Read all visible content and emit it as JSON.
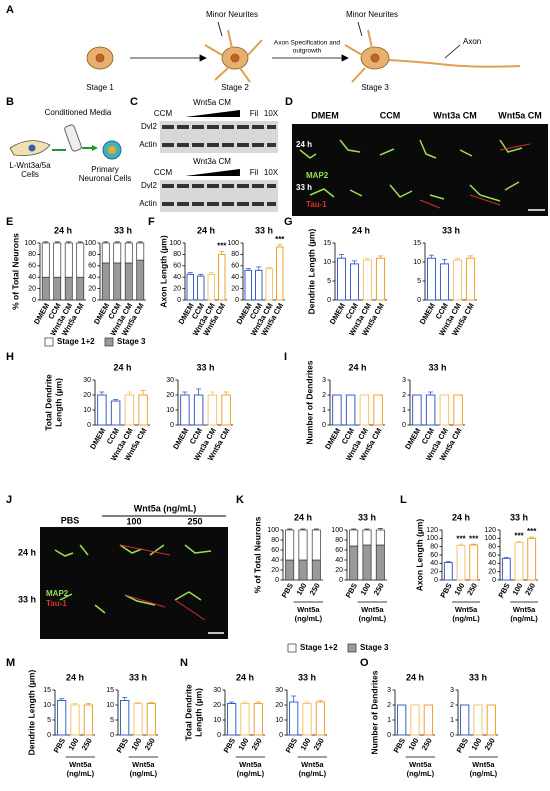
{
  "figure": {
    "A": {
      "letter": "A",
      "stages": [
        "Stage 1",
        "Stage 2",
        "Stage 3"
      ],
      "minor": [
        "Minor Neurites",
        "Minor Neurites"
      ],
      "step": [
        "Axon Specification and",
        "outgrowth"
      ],
      "axon": "Axon"
    },
    "B": {
      "letter": "B",
      "media": "Conditioned Media",
      "source": [
        "L-Wnt3a/5a",
        "Cells"
      ],
      "target": [
        "Primary",
        "Neuronal Cells"
      ]
    },
    "C": {
      "letter": "C",
      "blots": [
        {
          "ccm": "CCM",
          "treat": "Wnt5a CM",
          "fil": "Fil",
          "x10": "10X",
          "rows": [
            "Dvl2",
            "Actin"
          ]
        },
        {
          "ccm": "CCM",
          "treat": "Wnt3a CM",
          "fil": "Fil",
          "x10": "10X",
          "rows": [
            "Dvl2",
            "Actin"
          ]
        }
      ]
    },
    "D": {
      "letter": "D",
      "columns": [
        "DMEM",
        "CCM",
        "Wnt3a CM",
        "Wnt5a CM"
      ],
      "rows": [
        "24 h",
        "33 h"
      ],
      "stain": [
        "MAP2",
        "Tau-1"
      ]
    },
    "J": {
      "letter": "J",
      "control": "PBS",
      "treat": "Wnt5a (ng/mL)",
      "doses": [
        "100",
        "250"
      ],
      "rows": [
        "24 h",
        "33 h"
      ],
      "stain": [
        "MAP2",
        "Tau-1"
      ]
    }
  },
  "charts": {
    "E": {
      "letter": "E",
      "type": "stacked",
      "ylabel": [
        "% of Total Neurons"
      ],
      "ylim": [
        0,
        100
      ],
      "yticks": [
        0,
        20,
        40,
        60,
        80,
        100
      ],
      "legend": [
        {
          "name": "Stage 1+2",
          "color": "#ffffff"
        },
        {
          "name": "Stage 3",
          "color": "#999999"
        }
      ],
      "groups": [
        {
          "title": "24 h",
          "categories": [
            "DMEM",
            "CCM",
            "Wnt3a CM",
            "Wnt5a CM"
          ],
          "series": [
            {
              "values": [
                60,
                60,
                60,
                60
              ],
              "errors": [
                2,
                2,
                2,
                2
              ]
            },
            {
              "values": [
                40,
                40,
                40,
                40
              ],
              "errors": [
                2,
                2,
                2,
                2
              ]
            }
          ]
        },
        {
          "title": "33 h",
          "categories": [
            "DMEM",
            "CCM",
            "Wnt3a CM",
            "Wnt5a CM"
          ],
          "series": [
            {
              "values": [
                35,
                35,
                35,
                30
              ],
              "errors": [
                2,
                2,
                2,
                2
              ]
            },
            {
              "values": [
                65,
                65,
                65,
                70
              ],
              "errors": [
                2,
                2,
                2,
                2
              ]
            }
          ]
        }
      ]
    },
    "F": {
      "letter": "F",
      "type": "bar",
      "ylabel": [
        "Axon Length (µm)"
      ],
      "ylim": [
        0,
        100
      ],
      "yticks": [
        0,
        20,
        40,
        60,
        80,
        100
      ],
      "colors": [
        "#3a5fcd",
        "#3a5fcd",
        "#f6c36b",
        "#f0a030"
      ],
      "groups": [
        {
          "title": "24 h",
          "categories": [
            "DMEM",
            "CCM",
            "Wnt3a CM",
            "Wnt5a CM"
          ],
          "values": [
            45,
            42,
            45,
            80
          ],
          "errors": [
            3,
            3,
            3,
            5
          ],
          "stars": [
            null,
            null,
            null,
            "***"
          ]
        },
        {
          "title": "33 h",
          "categories": [
            "DMEM",
            "CCM",
            "Wnt3a CM",
            "Wnt5a CM"
          ],
          "values": [
            52,
            52,
            55,
            93
          ],
          "errors": [
            3,
            6,
            2,
            4
          ],
          "stars": [
            null,
            null,
            null,
            "***"
          ]
        }
      ]
    },
    "G": {
      "letter": "G",
      "type": "bar",
      "ylabel": [
        "Dendrite Length (µm)"
      ],
      "ylim": [
        0,
        15
      ],
      "yticks": [
        0,
        5,
        10,
        15
      ],
      "colors": [
        "#3a5fcd",
        "#3a5fcd",
        "#f6c36b",
        "#f0a030"
      ],
      "groups": [
        {
          "title": "24 h",
          "categories": [
            "DMEM",
            "CCM",
            "Wnt3a CM",
            "Wnt5a CM"
          ],
          "values": [
            11,
            9.5,
            10.5,
            11
          ],
          "errors": [
            1,
            0.8,
            0.5,
            0.6
          ]
        },
        {
          "title": "33 h",
          "categories": [
            "DMEM",
            "CCM",
            "Wnt3a CM",
            "Wnt5a CM"
          ],
          "values": [
            11,
            9.5,
            10.5,
            11
          ],
          "errors": [
            0.8,
            1.2,
            0.5,
            0.6
          ]
        }
      ]
    },
    "H": {
      "letter": "H",
      "type": "bar",
      "ylabel": [
        "Total Dendrite",
        "Length (µm)"
      ],
      "ylim": [
        0,
        30
      ],
      "yticks": [
        0,
        10,
        20,
        30
      ],
      "colors": [
        "#3a5fcd",
        "#3a5fcd",
        "#f6c36b",
        "#f0a030"
      ],
      "groups": [
        {
          "title": "24 h",
          "categories": [
            "DMEM",
            "CCM",
            "Wnt3a CM",
            "Wnt5a CM"
          ],
          "values": [
            20,
            16,
            20,
            20
          ],
          "errors": [
            2,
            1,
            2,
            3
          ]
        },
        {
          "title": "33 h",
          "categories": [
            "DMEM",
            "CCM",
            "Wnt3a CM",
            "Wnt5a CM"
          ],
          "values": [
            20,
            20,
            20,
            20
          ],
          "errors": [
            2,
            4,
            2,
            2
          ]
        }
      ]
    },
    "I": {
      "letter": "I",
      "type": "bar",
      "ylabel": [
        "Number of Dendrites"
      ],
      "ylim": [
        0,
        3
      ],
      "yticks": [
        0,
        1,
        2,
        3
      ],
      "colors": [
        "#3a5fcd",
        "#3a5fcd",
        "#f6c36b",
        "#f0a030"
      ],
      "groups": [
        {
          "title": "24 h",
          "categories": [
            "DMEM",
            "CCM",
            "Wnt3a CM",
            "Wnt5a CM"
          ],
          "values": [
            2,
            2,
            2,
            2
          ],
          "errors": [
            0,
            0,
            0,
            0
          ]
        },
        {
          "title": "33 h",
          "categories": [
            "DMEM",
            "CCM",
            "Wnt3a CM",
            "Wnt5a CM"
          ],
          "values": [
            2,
            2,
            2,
            2
          ],
          "errors": [
            0,
            0.2,
            0,
            0
          ]
        }
      ]
    },
    "K": {
      "letter": "K",
      "type": "stacked",
      "ylabel": [
        "% of Total Neurons"
      ],
      "ylim": [
        0,
        100
      ],
      "yticks": [
        0,
        20,
        40,
        60,
        80,
        100
      ],
      "legend": [
        {
          "name": "Stage 1+2",
          "color": "#ffffff"
        },
        {
          "name": "Stage 3",
          "color": "#999999"
        }
      ],
      "groups": [
        {
          "title": "24 h",
          "categories": [
            "PBS",
            "100",
            "250"
          ],
          "bracket": [
            "Wnt5a",
            "(ng/mL)"
          ],
          "series": [
            {
              "values": [
                60,
                60,
                60
              ],
              "errors": [
                2,
                2,
                2
              ]
            },
            {
              "values": [
                40,
                40,
                40
              ],
              "errors": [
                2,
                2,
                2
              ]
            }
          ]
        },
        {
          "title": "33 h",
          "categories": [
            "PBS",
            "100",
            "250"
          ],
          "bracket": [
            "Wnt5a",
            "(ng/mL)"
          ],
          "series": [
            {
              "values": [
                32,
                30,
                30
              ],
              "errors": [
                2,
                2,
                3
              ]
            },
            {
              "values": [
                68,
                70,
                70
              ],
              "errors": [
                2,
                2,
                3
              ]
            }
          ]
        }
      ]
    },
    "L": {
      "letter": "L",
      "type": "bar",
      "ylabel": [
        "Axon Length (µm)"
      ],
      "ylim": [
        0,
        120
      ],
      "yticks": [
        0,
        20,
        40,
        60,
        80,
        100,
        120
      ],
      "colors": [
        "#3a5fcd",
        "#f6c36b",
        "#f0a030"
      ],
      "groups": [
        {
          "title": "24 h",
          "categories": [
            "PBS",
            "100",
            "250"
          ],
          "bracket": [
            "Wnt5a",
            "(ng/mL)"
          ],
          "values": [
            42,
            83,
            84
          ],
          "errors": [
            2,
            3,
            2
          ],
          "stars": [
            null,
            "***",
            "***"
          ]
        },
        {
          "title": "33 h",
          "categories": [
            "PBS",
            "100",
            "250"
          ],
          "bracket": [
            "Wnt5a",
            "(ng/mL)"
          ],
          "values": [
            52,
            90,
            100
          ],
          "errors": [
            2,
            3,
            3
          ],
          "stars": [
            null,
            "***",
            "***"
          ]
        }
      ]
    },
    "M": {
      "letter": "M",
      "type": "bar",
      "ylabel": [
        "Dendrite Length (µm)"
      ],
      "ylim": [
        0,
        15
      ],
      "yticks": [
        0,
        5,
        10,
        15
      ],
      "colors": [
        "#3a5fcd",
        "#f6c36b",
        "#f0a030"
      ],
      "groups": [
        {
          "title": "24 h",
          "categories": [
            "PBS",
            "100",
            "250"
          ],
          "bracket": [
            "Wnt5a",
            "(ng/mL)"
          ],
          "values": [
            11.5,
            10,
            10
          ],
          "errors": [
            0.6,
            0.5,
            0.5
          ]
        },
        {
          "title": "33 h",
          "categories": [
            "PBS",
            "100",
            "250"
          ],
          "bracket": [
            "Wnt5a",
            "(ng/mL)"
          ],
          "values": [
            11.5,
            10.5,
            10.5
          ],
          "errors": [
            1,
            0.3,
            0.3
          ]
        }
      ]
    },
    "N": {
      "letter": "N",
      "type": "bar",
      "ylabel": [
        "Total Dendrite",
        "Length (µm)"
      ],
      "ylim": [
        0,
        30
      ],
      "yticks": [
        0,
        10,
        20,
        30
      ],
      "colors": [
        "#3a5fcd",
        "#f6c36b",
        "#f0a030"
      ],
      "groups": [
        {
          "title": "24 h",
          "categories": [
            "PBS",
            "100",
            "250"
          ],
          "bracket": [
            "Wnt5a",
            "(ng/mL)"
          ],
          "values": [
            21,
            21,
            21
          ],
          "errors": [
            1,
            1,
            1
          ]
        },
        {
          "title": "33 h",
          "categories": [
            "PBS",
            "100",
            "250"
          ],
          "bracket": [
            "Wnt5a",
            "(ng/mL)"
          ],
          "values": [
            22,
            21,
            22
          ],
          "errors": [
            4,
            1,
            1
          ]
        }
      ]
    },
    "O": {
      "letter": "O",
      "type": "bar",
      "ylabel": [
        "Number of Dendrites"
      ],
      "ylim": [
        0,
        3
      ],
      "yticks": [
        0,
        1,
        2,
        3
      ],
      "colors": [
        "#3a5fcd",
        "#f6c36b",
        "#f0a030"
      ],
      "groups": [
        {
          "title": "24 h",
          "categories": [
            "PBS",
            "100",
            "250"
          ],
          "bracket": [
            "Wnt5a",
            "(ng/mL)"
          ],
          "values": [
            2,
            2,
            2
          ],
          "errors": [
            0,
            0,
            0
          ]
        },
        {
          "title": "33 h",
          "categories": [
            "PBS",
            "100",
            "250"
          ],
          "bracket": [
            "Wnt5a",
            "(ng/mL)"
          ],
          "values": [
            2,
            2,
            2
          ],
          "errors": [
            0,
            0,
            0
          ]
        }
      ]
    }
  }
}
